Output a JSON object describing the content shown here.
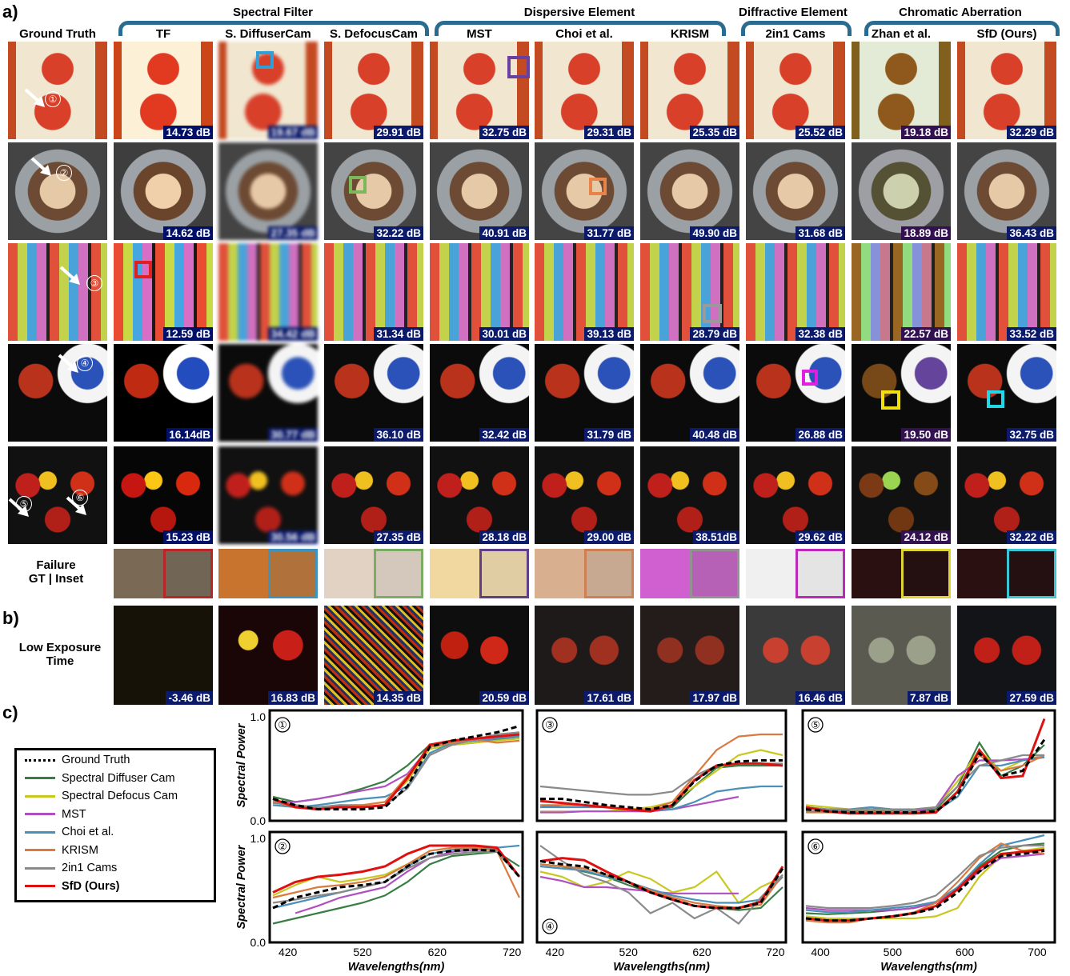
{
  "panel_labels": {
    "a": "a)",
    "b": "b)",
    "c": "c)"
  },
  "groups": [
    "Spectral Filter",
    "Dispersive Element",
    "Diffractive Element",
    "Chromatic Aberration"
  ],
  "columns": [
    "Ground Truth",
    "TF",
    "S. DiffuserCam",
    "S. DefocusCam",
    "MST",
    "Choi et al.",
    "KRISM",
    "2in1 Cams",
    "Zhan et al.",
    "SfD (Ours)"
  ],
  "psnr_rows": [
    [
      "14.73 dB",
      "19.67 dB",
      "29.91 dB",
      "32.75 dB",
      "29.31 dB",
      "25.35 dB",
      "25.52 dB",
      "19.18 dB",
      "32.29 dB"
    ],
    [
      "14.62 dB",
      "27.35 dB",
      "32.22 dB",
      "40.91 dB",
      "31.77 dB",
      "49.90 dB",
      "31.68 dB",
      "18.89 dB",
      "36.43 dB"
    ],
    [
      "12.59 dB",
      "34.42 dB",
      "31.34 dB",
      "30.01 dB",
      "39.13 dB",
      "28.79 dB",
      "32.38 dB",
      "22.57 dB",
      "33.52 dB"
    ],
    [
      "16.14dB",
      "30.77 dB",
      "36.10 dB",
      "32.42 dB",
      "31.79 dB",
      "40.48 dB",
      "26.88 dB",
      "19.50 dB",
      "32.75 dB"
    ],
    [
      "15.23 dB",
      "30.56 dB",
      "27.35 dB",
      "28.18 dB",
      "29.00 dB",
      "38.51dB",
      "29.62 dB",
      "24.12 dB",
      "32.22 dB"
    ]
  ],
  "low_exposure_psnr": [
    "-3.46 dB",
    "16.83 dB",
    "14.35 dB",
    "20.59 dB",
    "17.61 dB",
    "17.97 dB",
    "16.46 dB",
    "7.87 dB",
    "27.59 dB"
  ],
  "failure_label": {
    "line1": "Failure",
    "line2": "GT | Inset"
  },
  "low_exposure_label": {
    "line1": "Low Exposure",
    "line2": "Time"
  },
  "markers": [
    "①",
    "②",
    "③",
    "④",
    "⑤",
    "⑥"
  ],
  "highlight_colors": [
    "#2f9fd6",
    "#7ab85a",
    "#6b3fa0",
    "#e8834a",
    "#9a9a9a",
    "#e020e0",
    "#f0e010",
    "#20d8e8",
    "#e02020"
  ],
  "legend": [
    {
      "label": "Ground Truth",
      "color": "#000000",
      "dashed": true,
      "bold": false
    },
    {
      "label": "Spectral Diffuser Cam",
      "color": "#3a7d44",
      "dashed": false,
      "bold": false
    },
    {
      "label": "Spectral Defocus Cam",
      "color": "#c8c820",
      "dashed": false,
      "bold": false
    },
    {
      "label": "MST",
      "color": "#b050c0",
      "dashed": false,
      "bold": false
    },
    {
      "label": "Choi et al.",
      "color": "#4a90b8",
      "dashed": false,
      "bold": false
    },
    {
      "label": "KRISM",
      "color": "#d97a40",
      "dashed": false,
      "bold": false
    },
    {
      "label": "2in1 Cams",
      "color": "#8a8a8a",
      "dashed": false,
      "bold": false
    },
    {
      "label": "SfD (Ours)",
      "color": "#e01010",
      "dashed": false,
      "bold": true
    }
  ],
  "plots": {
    "ylabel": "Spectral Power",
    "xlabel": "Wavelengths(nm)",
    "yticks": [
      "0.0",
      "1.0"
    ],
    "xticks_a": [
      "420",
      "520",
      "620",
      "720"
    ],
    "xticks_b": [
      "400",
      "500",
      "600",
      "700"
    ]
  },
  "chart_data": [
    {
      "type": "line",
      "title": "①",
      "xlabel": "",
      "ylabel": "Spectral Power",
      "xlim": [
        400,
        730
      ],
      "ylim": [
        0,
        1
      ],
      "x": [
        400,
        430,
        460,
        490,
        520,
        550,
        580,
        610,
        640,
        670,
        700,
        730
      ],
      "series": [
        {
          "name": "Ground Truth",
          "values": [
            0.18,
            0.12,
            0.08,
            0.08,
            0.08,
            0.1,
            0.3,
            0.68,
            0.74,
            0.78,
            0.82,
            0.88
          ]
        },
        {
          "name": "Spectral Diffuser Cam",
          "values": [
            0.2,
            0.15,
            0.18,
            0.22,
            0.28,
            0.35,
            0.5,
            0.7,
            0.7,
            0.72,
            0.75,
            0.76
          ]
        },
        {
          "name": "Spectral Defocus Cam",
          "values": [
            0.16,
            0.12,
            0.1,
            0.12,
            0.12,
            0.15,
            0.35,
            0.66,
            0.7,
            0.72,
            0.74,
            0.76
          ]
        },
        {
          "name": "MST",
          "values": [
            0.15,
            0.15,
            0.18,
            0.22,
            0.26,
            0.3,
            0.42,
            0.68,
            0.72,
            0.74,
            0.76,
            0.78
          ]
        },
        {
          "name": "Choi et al.",
          "values": [
            0.12,
            0.1,
            0.12,
            0.15,
            0.18,
            0.2,
            0.3,
            0.62,
            0.72,
            0.74,
            0.76,
            0.78
          ]
        },
        {
          "name": "KRISM",
          "values": [
            0.15,
            0.1,
            0.1,
            0.12,
            0.12,
            0.15,
            0.4,
            0.68,
            0.72,
            0.75,
            0.72,
            0.74
          ]
        },
        {
          "name": "2in1 Cams",
          "values": [
            0.14,
            0.12,
            0.1,
            0.12,
            0.1,
            0.12,
            0.28,
            0.6,
            0.7,
            0.75,
            0.8,
            0.82
          ]
        },
        {
          "name": "SfD (Ours)",
          "values": [
            0.18,
            0.1,
            0.08,
            0.1,
            0.1,
            0.12,
            0.38,
            0.7,
            0.74,
            0.76,
            0.78,
            0.8
          ]
        }
      ]
    },
    {
      "type": "line",
      "title": "③",
      "xlabel": "",
      "ylabel": "",
      "xlim": [
        400,
        730
      ],
      "ylim": [
        0,
        1
      ],
      "x": [
        400,
        430,
        460,
        490,
        520,
        550,
        580,
        610,
        640,
        670,
        700,
        730
      ],
      "series": [
        {
          "name": "Ground Truth",
          "values": [
            0.18,
            0.18,
            0.15,
            0.12,
            0.1,
            0.08,
            0.12,
            0.35,
            0.5,
            0.54,
            0.55,
            0.55
          ]
        },
        {
          "name": "Spectral Diffuser Cam",
          "values": [
            0.1,
            0.12,
            0.12,
            0.1,
            0.08,
            0.08,
            0.1,
            0.3,
            0.48,
            0.5,
            0.5,
            0.5
          ]
        },
        {
          "name": "Spectral Defocus Cam",
          "values": [
            0.06,
            0.06,
            0.06,
            0.06,
            0.08,
            0.1,
            0.15,
            0.3,
            0.45,
            0.6,
            0.65,
            0.6
          ]
        },
        {
          "name": "MST",
          "values": [
            0.05,
            0.05,
            0.06,
            0.06,
            0.06,
            0.06,
            0.08,
            0.12,
            0.16,
            0.2,
            null,
            null
          ]
        },
        {
          "name": "Choi et al.",
          "values": [
            0.1,
            0.1,
            0.1,
            0.1,
            0.08,
            0.08,
            0.08,
            0.15,
            0.25,
            0.28,
            0.3,
            0.3
          ]
        },
        {
          "name": "KRISM",
          "values": [
            0.12,
            0.12,
            0.12,
            0.1,
            0.08,
            0.08,
            0.15,
            0.4,
            0.65,
            0.78,
            0.8,
            0.8
          ]
        },
        {
          "name": "2in1 Cams",
          "values": [
            0.3,
            0.28,
            0.26,
            0.24,
            0.22,
            0.22,
            0.25,
            0.4,
            0.5,
            0.52,
            0.52,
            0.52
          ]
        },
        {
          "name": "SfD (Ours)",
          "values": [
            0.16,
            0.14,
            0.12,
            0.1,
            0.08,
            0.06,
            0.12,
            0.36,
            0.5,
            0.52,
            0.52,
            0.5
          ]
        }
      ]
    },
    {
      "type": "line",
      "title": "⑤",
      "xlabel": "",
      "ylabel": "",
      "xlim": [
        380,
        720
      ],
      "ylim": [
        0,
        1
      ],
      "x": [
        380,
        410,
        440,
        470,
        500,
        530,
        560,
        590,
        620,
        650,
        680,
        710
      ],
      "series": [
        {
          "name": "Ground Truth",
          "values": [
            0.08,
            0.06,
            0.05,
            0.05,
            0.05,
            0.05,
            0.06,
            0.22,
            0.62,
            0.4,
            0.45,
            0.75
          ]
        },
        {
          "name": "Spectral Diffuser Cam",
          "values": [
            0.1,
            0.08,
            0.06,
            0.06,
            0.06,
            0.06,
            0.08,
            0.3,
            0.72,
            0.4,
            0.5,
            0.7
          ]
        },
        {
          "name": "Spectral Defocus Cam",
          "values": [
            0.12,
            0.1,
            0.08,
            0.08,
            0.08,
            0.08,
            0.1,
            0.35,
            0.65,
            0.45,
            0.55,
            0.6
          ]
        },
        {
          "name": "MST",
          "values": [
            0.06,
            0.05,
            0.05,
            0.05,
            0.05,
            0.06,
            0.1,
            0.4,
            0.55,
            0.55,
            0.56,
            0.58
          ]
        },
        {
          "name": "Choi et al.",
          "values": [
            0.06,
            0.06,
            0.08,
            0.1,
            0.08,
            0.06,
            0.06,
            0.2,
            0.5,
            0.5,
            0.55,
            0.58
          ]
        },
        {
          "name": "KRISM",
          "values": [
            0.05,
            0.05,
            0.05,
            0.05,
            0.05,
            0.05,
            0.06,
            0.25,
            0.6,
            0.45,
            0.5,
            0.6
          ]
        },
        {
          "name": "2in1 Cams",
          "values": [
            0.1,
            0.08,
            0.08,
            0.08,
            0.08,
            0.08,
            0.1,
            0.3,
            0.5,
            0.55,
            0.6,
            0.6
          ]
        },
        {
          "name": "SfD (Ours)",
          "values": [
            0.1,
            0.06,
            0.04,
            0.04,
            0.04,
            0.04,
            0.05,
            0.25,
            0.65,
            0.38,
            0.4,
            0.95
          ]
        }
      ]
    },
    {
      "type": "line",
      "title": "②",
      "xlabel": "Wavelengths(nm)",
      "ylabel": "Spectral Power",
      "xlim": [
        400,
        730
      ],
      "ylim": [
        0,
        1
      ],
      "x": [
        400,
        430,
        460,
        490,
        520,
        550,
        580,
        610,
        640,
        670,
        700,
        730
      ],
      "series": [
        {
          "name": "Ground Truth",
          "values": [
            0.3,
            0.4,
            0.45,
            0.5,
            0.52,
            0.55,
            0.7,
            0.82,
            0.85,
            0.86,
            0.85,
            0.6
          ]
        },
        {
          "name": "Spectral Diffuser Cam",
          "values": [
            0.15,
            0.2,
            0.25,
            0.3,
            0.35,
            0.42,
            0.55,
            0.72,
            0.8,
            0.82,
            0.84,
            0.7
          ]
        },
        {
          "name": "Spectral Defocus Cam",
          "values": [
            0.42,
            0.52,
            0.6,
            0.55,
            0.58,
            0.62,
            0.72,
            0.82,
            0.86,
            0.88,
            0.86,
            0.6
          ]
        },
        {
          "name": "MST",
          "values": [
            null,
            0.25,
            0.32,
            0.4,
            0.45,
            0.5,
            0.65,
            0.78,
            0.84,
            0.86,
            0.86,
            null
          ]
        },
        {
          "name": "Choi et al.",
          "values": [
            0.3,
            0.35,
            0.4,
            0.45,
            0.5,
            0.55,
            0.7,
            0.82,
            0.86,
            0.88,
            0.88,
            0.9
          ]
        },
        {
          "name": "KRISM",
          "values": [
            0.4,
            0.45,
            0.5,
            0.52,
            0.55,
            0.6,
            0.72,
            0.85,
            0.88,
            0.88,
            0.85,
            0.4
          ]
        },
        {
          "name": "2in1 Cams",
          "values": [
            0.35,
            0.38,
            0.42,
            0.45,
            0.5,
            0.55,
            0.68,
            0.78,
            0.82,
            0.84,
            0.84,
            0.6
          ]
        },
        {
          "name": "SfD (Ours)",
          "values": [
            0.45,
            0.55,
            0.6,
            0.62,
            0.65,
            0.7,
            0.82,
            0.9,
            0.9,
            0.9,
            0.88,
            0.6
          ]
        }
      ]
    },
    {
      "type": "line",
      "title": "④",
      "xlabel": "Wavelengths(nm)",
      "ylabel": "",
      "xlim": [
        400,
        730
      ],
      "ylim": [
        0,
        1
      ],
      "x": [
        400,
        430,
        460,
        490,
        520,
        550,
        580,
        610,
        640,
        670,
        700,
        730
      ],
      "series": [
        {
          "name": "Ground Truth",
          "values": [
            0.75,
            0.72,
            0.7,
            0.62,
            0.55,
            0.45,
            0.38,
            0.32,
            0.3,
            0.3,
            0.35,
            0.68
          ]
        },
        {
          "name": "Spectral Diffuser Cam",
          "values": [
            0.72,
            0.7,
            0.65,
            0.6,
            0.52,
            0.45,
            0.38,
            0.32,
            0.3,
            0.28,
            0.3,
            0.5
          ]
        },
        {
          "name": "Spectral Defocus Cam",
          "values": [
            0.65,
            0.6,
            0.5,
            0.55,
            0.65,
            0.58,
            0.45,
            0.5,
            0.65,
            0.35,
            0.5,
            0.6
          ]
        },
        {
          "name": "MST",
          "values": [
            0.6,
            0.56,
            0.5,
            0.5,
            0.48,
            0.46,
            0.44,
            0.44,
            0.44,
            0.44,
            null,
            null
          ]
        },
        {
          "name": "Choi et al.",
          "values": [
            0.7,
            0.68,
            0.66,
            0.6,
            0.55,
            0.48,
            0.42,
            0.38,
            0.35,
            0.35,
            0.38,
            0.6
          ]
        },
        {
          "name": "KRISM",
          "values": [
            0.72,
            0.7,
            0.68,
            0.62,
            0.55,
            0.47,
            0.4,
            0.35,
            0.32,
            0.3,
            0.33,
            0.62
          ]
        },
        {
          "name": "2in1 Cams",
          "values": [
            0.9,
            0.75,
            0.62,
            0.55,
            0.45,
            0.25,
            0.35,
            0.2,
            0.3,
            0.15,
            0.4,
            0.62
          ]
        },
        {
          "name": "SfD (Ours)",
          "values": [
            0.75,
            0.78,
            0.76,
            0.65,
            0.55,
            0.45,
            0.38,
            0.32,
            0.3,
            0.3,
            0.36,
            0.7
          ]
        }
      ]
    },
    {
      "type": "line",
      "title": "⑥",
      "xlabel": "Wavelengths(nm)",
      "ylabel": "",
      "xlim": [
        380,
        720
      ],
      "ylim": [
        0,
        1
      ],
      "x": [
        380,
        410,
        440,
        470,
        500,
        530,
        560,
        590,
        620,
        650,
        680,
        710
      ],
      "series": [
        {
          "name": "Ground Truth",
          "values": [
            0.2,
            0.18,
            0.18,
            0.2,
            0.22,
            0.25,
            0.3,
            0.45,
            0.65,
            0.8,
            0.82,
            0.85
          ]
        },
        {
          "name": "Spectral Diffuser Cam",
          "values": [
            0.25,
            0.24,
            0.25,
            0.26,
            0.28,
            0.3,
            0.35,
            0.5,
            0.7,
            0.85,
            0.9,
            0.92
          ]
        },
        {
          "name": "Spectral Defocus Cam",
          "values": [
            0.22,
            0.2,
            0.2,
            0.2,
            0.2,
            0.2,
            0.22,
            0.3,
            0.6,
            0.8,
            0.85,
            0.88
          ]
        },
        {
          "name": "MST",
          "values": [
            0.3,
            0.28,
            0.28,
            0.28,
            0.28,
            0.3,
            0.35,
            0.48,
            0.65,
            0.78,
            0.8,
            0.82
          ]
        },
        {
          "name": "Choi et al.",
          "values": [
            0.28,
            0.26,
            0.26,
            0.28,
            0.3,
            0.32,
            0.36,
            0.5,
            0.72,
            0.9,
            0.95,
            1.0
          ]
        },
        {
          "name": "KRISM",
          "values": [
            0.18,
            0.16,
            0.16,
            0.2,
            0.22,
            0.26,
            0.35,
            0.55,
            0.78,
            0.92,
            0.85,
            0.82
          ]
        },
        {
          "name": "2in1 Cams",
          "values": [
            0.32,
            0.3,
            0.3,
            0.3,
            0.32,
            0.35,
            0.42,
            0.6,
            0.8,
            0.88,
            0.9,
            0.9
          ]
        },
        {
          "name": "SfD (Ours)",
          "values": [
            0.2,
            0.18,
            0.18,
            0.2,
            0.22,
            0.25,
            0.32,
            0.48,
            0.68,
            0.82,
            0.84,
            0.86
          ]
        }
      ]
    }
  ]
}
